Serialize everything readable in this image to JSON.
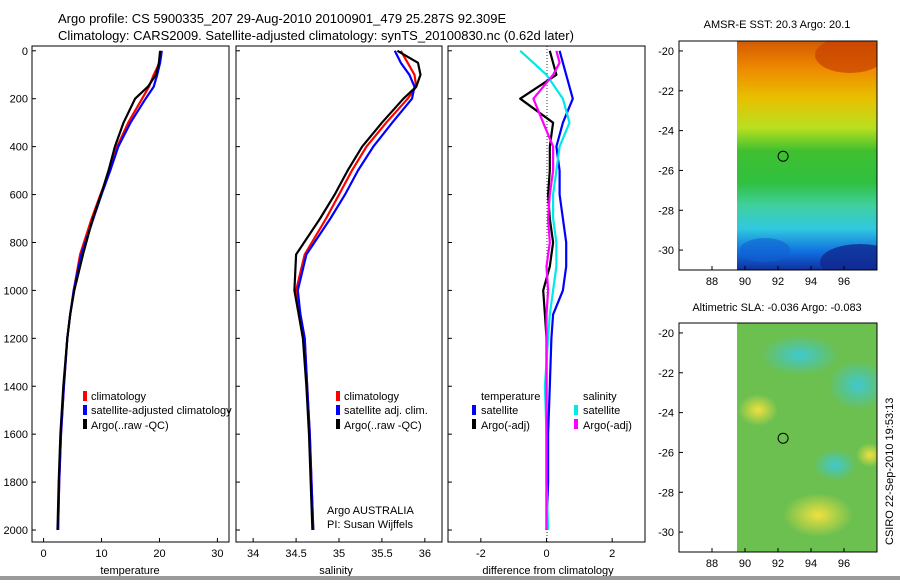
{
  "header": {
    "line1": "Argo profile: CS 5900335_207 29-Aug-2010 20100901_479 25.287S 92.309E",
    "line2": "Climatology: CARS2009. Satellite-adjusted climatology: synTS_20100830.nc (0.62d later)"
  },
  "side_label": "CSIRO 22-Sep-2010 19:53:13",
  "colors": {
    "climatology": "#ff0000",
    "satellite": "#0000ff",
    "argo": "#000000",
    "sat_sal": "#00e8e8",
    "argo_sal": "#ff00ff",
    "axis": "#000000"
  },
  "chart_data": [
    {
      "id": "temperature",
      "type": "line",
      "xlabel": "temperature",
      "xlim": [
        -2,
        32
      ],
      "ylim": [
        2050,
        -20
      ],
      "x_ticks": [
        0,
        10,
        20,
        30
      ],
      "y_ticks": [
        0,
        200,
        400,
        600,
        800,
        1000,
        1200,
        1400,
        1600,
        1800,
        2000
      ],
      "legend": [
        "climatology",
        "satellite-adjusted climatology",
        "Argo(..raw -QC)"
      ],
      "series": [
        {
          "name": "climatology",
          "color": "#ff0000",
          "x": [
            20.3,
            20.0,
            19.0,
            18.2,
            17.0,
            14.6,
            12.7,
            11.5,
            9.8,
            8.3,
            6.3,
            5.2,
            4.6,
            4.1,
            3.5,
            3.0,
            2.7,
            2.5
          ],
          "y": [
            0,
            50,
            100,
            150,
            200,
            300,
            400,
            500,
            600,
            700,
            850,
            1000,
            1100,
            1200,
            1400,
            1600,
            1800,
            2000
          ]
        },
        {
          "name": "satellite-adjusted climatology",
          "color": "#0000ff",
          "x": [
            20.4,
            20.1,
            19.6,
            19.0,
            17.6,
            15.0,
            12.9,
            11.5,
            10.0,
            8.6,
            6.5,
            5.2,
            4.6,
            4.1,
            3.5,
            3.0,
            2.7,
            2.5
          ],
          "y": [
            0,
            50,
            100,
            150,
            200,
            300,
            400,
            500,
            600,
            700,
            850,
            1000,
            1100,
            1200,
            1400,
            1600,
            1800,
            2000
          ]
        },
        {
          "name": "Argo(..raw -QC)",
          "color": "#000000",
          "x": [
            20.1,
            19.9,
            19.4,
            18.0,
            15.8,
            13.8,
            12.3,
            11.2,
            9.9,
            8.5,
            6.8,
            5.3,
            4.6,
            4.1,
            3.4,
            2.9,
            2.6,
            2.4
          ],
          "y": [
            0,
            50,
            100,
            150,
            200,
            300,
            400,
            500,
            600,
            700,
            850,
            1000,
            1100,
            1200,
            1400,
            1600,
            1800,
            2000
          ]
        }
      ]
    },
    {
      "id": "salinity",
      "type": "line",
      "xlabel": "salinity",
      "xlim": [
        33.8,
        36.2
      ],
      "ylim": [
        2050,
        -20
      ],
      "x_ticks": [
        34,
        34.5,
        35,
        35.5,
        36
      ],
      "x_tick_labels": [
        "34",
        "34.5",
        "35",
        "35.5",
        "36"
      ],
      "legend": [
        "climatology",
        "satellite adj. clim.",
        "Argo(..raw -QC)"
      ],
      "annotation": [
        "Argo AUSTRALIA",
        "PI: Susan Wijffels"
      ],
      "series": [
        {
          "name": "climatology",
          "color": "#ff0000",
          "x": [
            35.72,
            35.8,
            35.88,
            35.9,
            35.8,
            35.55,
            35.32,
            35.15,
            35.0,
            34.85,
            34.6,
            34.5,
            34.55,
            34.6,
            34.63,
            34.66,
            34.68,
            34.7
          ],
          "y": [
            0,
            50,
            100,
            150,
            200,
            300,
            400,
            500,
            600,
            700,
            850,
            1000,
            1100,
            1200,
            1400,
            1600,
            1800,
            2000
          ]
        },
        {
          "name": "satellite adj. clim.",
          "color": "#0000ff",
          "x": [
            35.65,
            35.72,
            35.82,
            35.88,
            35.85,
            35.62,
            35.4,
            35.22,
            35.07,
            34.9,
            34.62,
            34.52,
            34.55,
            34.6,
            34.63,
            34.66,
            34.68,
            34.7
          ],
          "y": [
            0,
            50,
            100,
            150,
            200,
            300,
            400,
            500,
            600,
            700,
            850,
            1000,
            1100,
            1200,
            1400,
            1600,
            1800,
            2000
          ]
        },
        {
          "name": "Argo(..raw -QC)",
          "color": "#000000",
          "x": [
            35.68,
            35.92,
            35.95,
            35.9,
            35.75,
            35.5,
            35.27,
            35.1,
            34.95,
            34.78,
            34.5,
            34.48,
            34.53,
            34.58,
            34.62,
            34.65,
            34.67,
            34.69
          ],
          "y": [
            0,
            50,
            100,
            150,
            200,
            300,
            400,
            500,
            600,
            700,
            850,
            1000,
            1100,
            1200,
            1400,
            1600,
            1800,
            2000
          ]
        }
      ]
    },
    {
      "id": "difference",
      "type": "line",
      "xlabel": "difference from climatology",
      "xlim": [
        -3,
        3
      ],
      "ylim": [
        2050,
        -20
      ],
      "x_ticks": [
        -2,
        0,
        2
      ],
      "legend_headers": [
        "temperature",
        "salinity"
      ],
      "legend": [
        "satellite",
        "Argo(-adj)",
        "satellite",
        "Argo(-adj)"
      ],
      "series": [
        {
          "name": "temperature satellite",
          "color": "#0000ff",
          "x": [
            0.4,
            0.5,
            0.6,
            0.8,
            0.5,
            0.3,
            0.4,
            0.4,
            0.5,
            0.6,
            0.6,
            0.5,
            0.2,
            0.15,
            0.1,
            0.05,
            0.05,
            0.0
          ],
          "y": [
            0,
            50,
            100,
            200,
            300,
            400,
            500,
            600,
            700,
            800,
            900,
            1000,
            1100,
            1200,
            1400,
            1600,
            1800,
            2000
          ]
        },
        {
          "name": "temperature Argo(-adj)",
          "color": "#000000",
          "x": [
            0.1,
            0.2,
            0.3,
            -0.8,
            0.2,
            0.1,
            0.1,
            0.05,
            0.1,
            0.2,
            0.1,
            -0.1,
            -0.05,
            0.0,
            0.0,
            0.0,
            0.0,
            0.0
          ],
          "y": [
            0,
            50,
            100,
            200,
            300,
            400,
            500,
            600,
            700,
            800,
            900,
            1000,
            1100,
            1200,
            1400,
            1600,
            1800,
            2000
          ]
        },
        {
          "name": "salinity satellite",
          "color": "#00e8e8",
          "x": [
            -0.8,
            -0.4,
            0.0,
            0.5,
            0.7,
            0.4,
            0.3,
            0.2,
            0.2,
            0.3,
            0.3,
            0.2,
            0.1,
            0.05,
            -0.05,
            0.0,
            0.0,
            0.05
          ],
          "y": [
            0,
            50,
            100,
            200,
            300,
            400,
            500,
            600,
            700,
            800,
            900,
            1000,
            1100,
            1200,
            1400,
            1600,
            1800,
            2000
          ]
        },
        {
          "name": "salinity Argo(-adj)",
          "color": "#ff00ff",
          "x": [
            0.3,
            0.4,
            0.2,
            -0.4,
            -0.1,
            0.2,
            0.2,
            0.1,
            0.05,
            0.1,
            0.0,
            0.05,
            0.0,
            0.0,
            0.0,
            0.0,
            0.0,
            0.0
          ],
          "y": [
            0,
            50,
            100,
            200,
            300,
            400,
            500,
            600,
            700,
            800,
            900,
            1000,
            1100,
            1200,
            1400,
            1600,
            1800,
            2000
          ]
        }
      ]
    },
    {
      "id": "sst_map",
      "type": "heatmap",
      "title": "AMSR-E SST: 20.3  Argo: 20.1",
      "xlim": [
        86,
        98
      ],
      "ylim": [
        -31,
        -19.5
      ],
      "x_ticks": [
        88,
        90,
        92,
        94,
        96
      ],
      "y_ticks": [
        -20,
        -22,
        -24,
        -26,
        -28,
        -30
      ],
      "data_x_range": [
        90,
        98
      ],
      "float_position": [
        92.309,
        -25.287
      ]
    },
    {
      "id": "sla_map",
      "type": "heatmap",
      "title": "Altimetric SLA: -0.036  Argo: -0.083",
      "xlim": [
        86,
        98
      ],
      "ylim": [
        -31,
        -19.5
      ],
      "x_ticks": [
        88,
        90,
        92,
        94,
        96
      ],
      "y_ticks": [
        -20,
        -22,
        -24,
        -26,
        -28,
        -30
      ],
      "data_x_range": [
        90,
        98
      ],
      "float_position": [
        92.309,
        -25.287
      ]
    }
  ]
}
